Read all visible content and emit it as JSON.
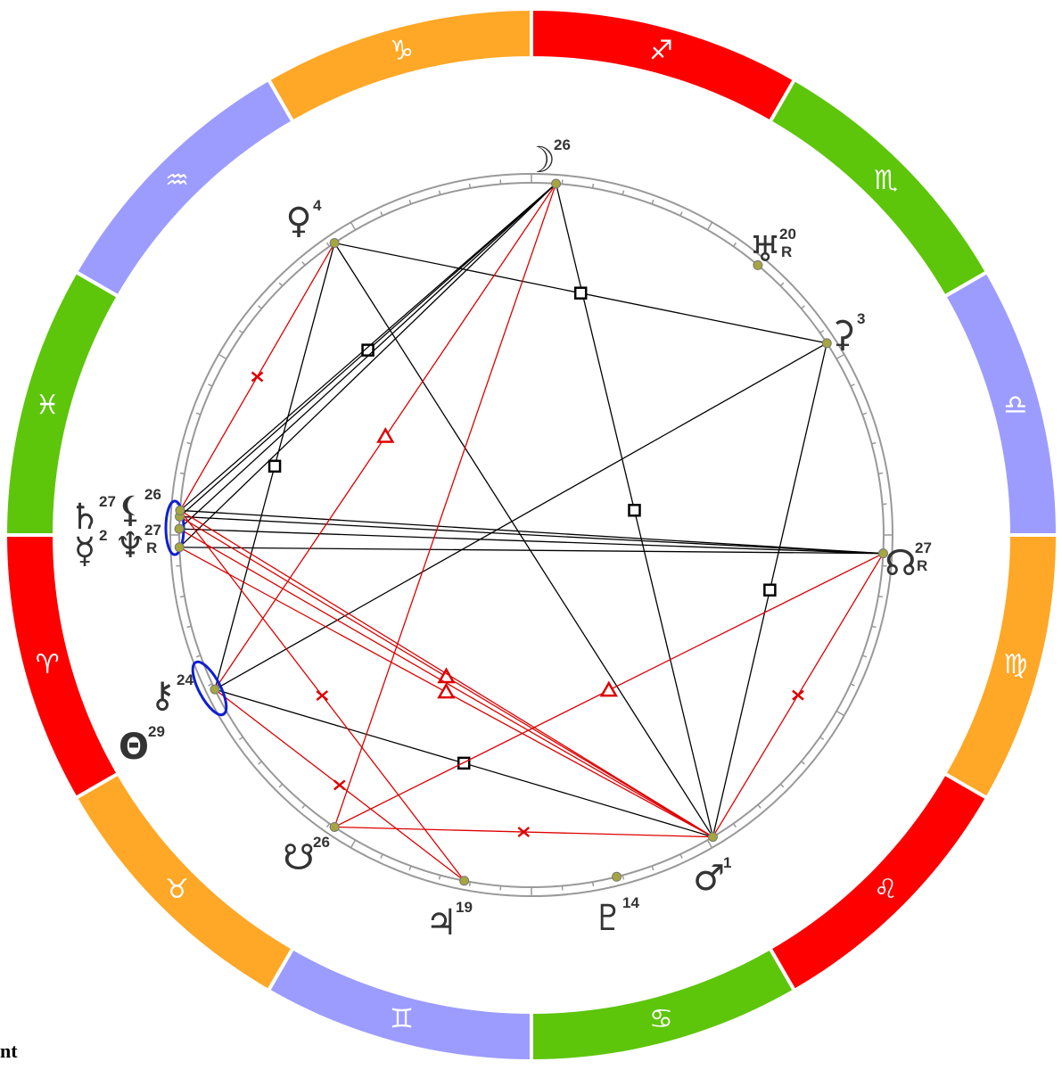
{
  "signs": [
    {
      "glyph": "♈",
      "color": "#ff0000"
    },
    {
      "glyph": "♉",
      "color": "#ffa726"
    },
    {
      "glyph": "♊",
      "color": "#9c9cff"
    },
    {
      "glyph": "♋",
      "color": "#5dc50a"
    },
    {
      "glyph": "♌",
      "color": "#ff0000"
    },
    {
      "glyph": "♍",
      "color": "#ffa726"
    },
    {
      "glyph": "♎",
      "color": "#9c9cff"
    },
    {
      "glyph": "♏",
      "color": "#5dc50a"
    },
    {
      "glyph": "♐",
      "color": "#ff0000"
    },
    {
      "glyph": "♑",
      "color": "#ffa726"
    },
    {
      "glyph": "♒",
      "color": "#9c9cff"
    },
    {
      "glyph": "♓",
      "color": "#5dc50a"
    }
  ],
  "planets": [
    {
      "glyph": "☽",
      "degree": 26
    },
    {
      "glyph": "♀",
      "degree": 4
    },
    {
      "glyph": "♅",
      "degree": 20,
      "retrograde": "R"
    },
    {
      "glyph": "⚳",
      "degree": 3
    },
    {
      "glyph": "☊",
      "degree": 27,
      "retrograde": "R"
    },
    {
      "glyph": "♂",
      "degree": 1
    },
    {
      "glyph": "♇",
      "degree": 14
    },
    {
      "glyph": "♃",
      "degree": 19
    },
    {
      "glyph": "☋",
      "degree": 26
    },
    {
      "glyph": "⚷",
      "degree": 24
    },
    {
      "glyph": "Θ",
      "degree": 29
    },
    {
      "glyph": "♄",
      "degree": 27
    },
    {
      "glyph": "⚸",
      "degree": 26
    },
    {
      "glyph": "☿",
      "degree": 2
    },
    {
      "glyph": "♆",
      "degree": 27,
      "retrograde": "R"
    }
  ],
  "footer": "nt"
}
